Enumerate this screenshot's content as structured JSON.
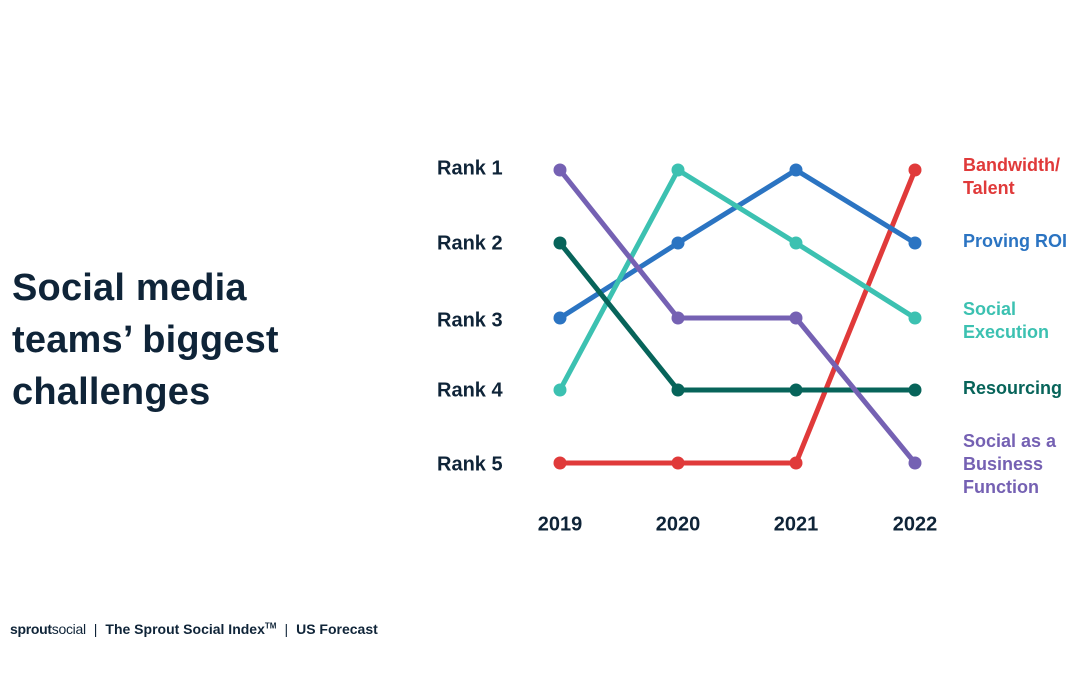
{
  "title": "Social media\nteams’ biggest\nchallenges",
  "footer": {
    "logo_part1": "sprout",
    "logo_part2": "social",
    "separator": "|",
    "index_name": "The Sprout Social Index",
    "trademark": "TM",
    "forecast": "US Forecast"
  },
  "chart_data": {
    "type": "line",
    "x": [
      "2019",
      "2020",
      "2021",
      "2022"
    ],
    "y_categories": [
      "Rank 1",
      "Rank 2",
      "Rank 3",
      "Rank 4",
      "Rank 5"
    ],
    "ylim": [
      1,
      5
    ],
    "y_inverted": true,
    "grid": false,
    "legend": "right, end-of-line labels",
    "series": [
      {
        "name": "Bandwidth/ Talent",
        "label_lines": [
          "Bandwidth/",
          "Talent"
        ],
        "color": "#e03a3a",
        "values": [
          5,
          5,
          5,
          1
        ]
      },
      {
        "name": "Proving ROI",
        "label_lines": [
          "Proving ROI"
        ],
        "color": "#2b74c2",
        "values": [
          3,
          2,
          1,
          2
        ]
      },
      {
        "name": "Social Execution",
        "label_lines": [
          "Social",
          "Execution"
        ],
        "color": "#3cc1b1",
        "values": [
          4,
          1,
          2,
          3
        ]
      },
      {
        "name": "Resourcing",
        "label_lines": [
          "Resourcing"
        ],
        "color": "#07645a",
        "values": [
          2,
          4,
          4,
          4
        ]
      },
      {
        "name": "Social as a Business Function",
        "label_lines": [
          "Social as a",
          "Business",
          "Function"
        ],
        "color": "#7561b3",
        "values": [
          1,
          3,
          3,
          5
        ]
      }
    ]
  }
}
